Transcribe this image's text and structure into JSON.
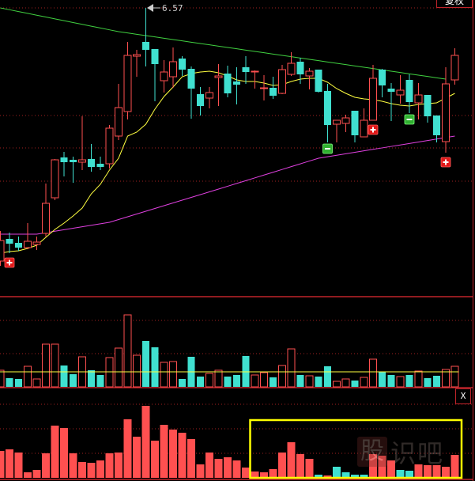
{
  "toolbar": {
    "restore_rights_label": "复权",
    "close_indicator_label": "X"
  },
  "watermark": {
    "logo_char": "股",
    "text": "识吧"
  },
  "colors": {
    "up": "#ff5050",
    "down": "#40e0d0",
    "ma_short": "#ffff40",
    "ma_long": "#e040e0",
    "trend": "#40d040",
    "grid": "#a02020",
    "highlight_box": "#ffff00"
  },
  "chart_data": {
    "type": "candlestick",
    "max_high_label": "6.57",
    "candles": [
      [
        3.37,
        3.75,
        3.31,
        3.63
      ],
      [
        3.65,
        3.73,
        3.47,
        3.59
      ],
      [
        3.6,
        3.68,
        3.5,
        3.54
      ],
      [
        3.54,
        3.85,
        3.52,
        3.62
      ],
      [
        3.58,
        3.68,
        3.51,
        3.61
      ],
      [
        3.72,
        4.35,
        3.68,
        4.1
      ],
      [
        4.17,
        4.66,
        4.14,
        4.65
      ],
      [
        4.68,
        4.75,
        4.44,
        4.62
      ],
      [
        4.65,
        4.69,
        4.36,
        4.62
      ],
      [
        4.62,
        5.2,
        4.52,
        4.65
      ],
      [
        4.66,
        4.85,
        4.5,
        4.56
      ],
      [
        4.6,
        4.69,
        4.52,
        4.56
      ],
      [
        4.6,
        5.09,
        4.54,
        5.05
      ],
      [
        4.95,
        5.61,
        4.9,
        5.31
      ],
      [
        5.26,
        6.14,
        5.16,
        5.97
      ],
      [
        5.96,
        6.04,
        5.7,
        5.98
      ],
      [
        6.14,
        6.57,
        5.83,
        6.04
      ],
      [
        6.05,
        6.05,
        5.39,
        5.86
      ],
      [
        5.65,
        5.91,
        5.5,
        5.76
      ],
      [
        5.7,
        6.07,
        5.56,
        5.89
      ],
      [
        5.93,
        5.96,
        5.71,
        5.79
      ],
      [
        5.8,
        5.83,
        5.17,
        5.55
      ],
      [
        5.48,
        5.57,
        5.21,
        5.33
      ],
      [
        5.43,
        5.57,
        5.3,
        5.5
      ],
      [
        5.69,
        5.86,
        5.33,
        5.71
      ],
      [
        5.74,
        5.84,
        5.44,
        5.49
      ],
      [
        5.64,
        5.82,
        5.35,
        5.6
      ],
      [
        5.82,
        5.96,
        5.61,
        5.76
      ],
      [
        5.76,
        5.78,
        5.55,
        5.77
      ],
      [
        5.55,
        5.72,
        5.4,
        5.56
      ],
      [
        5.56,
        5.7,
        5.42,
        5.46
      ],
      [
        5.49,
        5.85,
        5.48,
        5.79
      ],
      [
        5.73,
        6.01,
        5.71,
        5.87
      ],
      [
        5.89,
        5.94,
        5.61,
        5.73
      ],
      [
        5.71,
        5.81,
        5.54,
        5.77
      ],
      [
        5.79,
        5.79,
        5.5,
        5.51
      ],
      [
        5.52,
        5.61,
        4.87,
        5.09
      ],
      [
        5.1,
        5.15,
        4.87,
        5.15
      ],
      [
        5.11,
        5.22,
        5.0,
        5.18
      ],
      [
        5.27,
        5.27,
        4.87,
        4.96
      ],
      [
        4.94,
        5.3,
        4.94,
        5.15
      ],
      [
        5.15,
        5.85,
        5.15,
        5.68
      ],
      [
        5.79,
        5.8,
        5.44,
        5.59
      ],
      [
        5.55,
        5.62,
        5.14,
        5.51
      ],
      [
        5.47,
        5.72,
        5.36,
        5.53
      ],
      [
        5.66,
        5.73,
        5.24,
        5.38
      ],
      [
        5.37,
        5.62,
        5.16,
        5.47
      ],
      [
        5.47,
        5.47,
        5.12,
        5.2
      ],
      [
        5.21,
        5.21,
        4.87,
        4.96
      ],
      [
        4.88,
        5.82,
        4.74,
        5.61
      ],
      [
        5.66,
        6.06,
        5.6,
        5.97
      ]
    ],
    "ma_short": [
      3.47,
      3.49,
      3.5,
      3.53,
      3.57,
      3.67,
      3.77,
      3.85,
      3.94,
      4.04,
      4.22,
      4.34,
      4.52,
      4.67,
      4.95,
      5.0,
      5.1,
      5.29,
      5.45,
      5.57,
      5.7,
      5.74,
      5.76,
      5.77,
      5.75,
      5.71,
      5.66,
      5.64,
      5.64,
      5.62,
      5.59,
      5.6,
      5.64,
      5.67,
      5.68,
      5.68,
      5.63,
      5.55,
      5.49,
      5.44,
      5.42,
      5.41,
      5.39,
      5.36,
      5.34,
      5.33,
      5.35,
      5.36,
      5.37,
      5.43,
      5.49
    ],
    "ma_long": [
      [
        0,
        3.71
      ],
      [
        4,
        3.71
      ],
      [
        12,
        3.86
      ],
      [
        24,
        4.28
      ],
      [
        35,
        4.67
      ],
      [
        50,
        4.95
      ]
    ],
    "trend_line": [
      [
        0,
        6.57
      ],
      [
        13,
        6.27
      ],
      [
        49,
        5.67
      ]
    ],
    "buy_signals": [
      1,
      41,
      49
    ],
    "sell_signals": [
      36,
      45
    ],
    "volume": [
      21,
      11,
      10,
      26,
      10,
      54,
      54,
      27,
      16,
      38,
      21,
      15,
      37,
      49,
      91,
      40,
      58,
      50,
      31,
      32,
      10,
      38,
      13,
      17,
      21,
      13,
      15,
      39,
      15,
      18,
      12,
      27,
      48,
      15,
      14,
      13,
      26,
      7,
      10,
      8,
      12,
      35,
      19,
      15,
      13,
      15,
      20,
      11,
      14,
      22,
      26
    ],
    "volume_ma": 19,
    "indicator": [
      34,
      36,
      32,
      7,
      10,
      31,
      66,
      63,
      31,
      20,
      19,
      22,
      31,
      32,
      74,
      52,
      91,
      47,
      67,
      61,
      57,
      49,
      17,
      32,
      24,
      26,
      22,
      13,
      8,
      7,
      11,
      32,
      45,
      30,
      24,
      4,
      3,
      14,
      7,
      4,
      4,
      30,
      28,
      22,
      10,
      9,
      17,
      16,
      16,
      14,
      29
    ],
    "indicator_down": [
      35,
      37,
      38,
      39,
      40,
      44,
      45
    ],
    "highlight_range": [
      28,
      51
    ]
  }
}
